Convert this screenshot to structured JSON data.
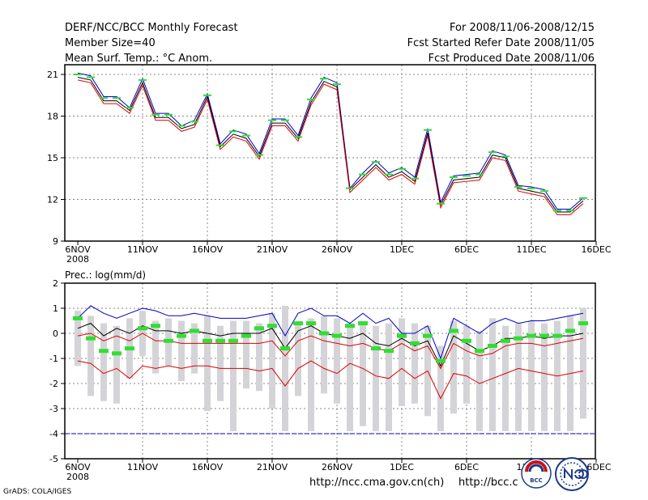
{
  "header": {
    "title": "DERF/NCC/BCC Monthly Forecast",
    "member_size": "Member Size=40",
    "variable": "Mean Surf. Temp.: °C Anom.",
    "period": "For 2008/11/06-2008/12/15",
    "started": "Fcst Started Refer Date 2008/11/05",
    "produced": "Fcst Produced Date 2008/11/06"
  },
  "footer": {
    "url1": "http://ncc.cma.gov.cn(ch)",
    "url2": "http://bcc.c",
    "grads": "GrADS: COLA/IGES",
    "logo_left": "BCC"
  },
  "colors": {
    "upper_line": "#0000cc",
    "lower_line": "#dd0000",
    "mean_line": "#000000",
    "forecast_mark": "#33dd33",
    "range_bar": "#d4d4d8",
    "grid": "#888888"
  },
  "chart_data": [
    {
      "type": "line",
      "title": "Mean Surf. Temp.: °C Anom.",
      "x_tick_labels": [
        "6NOV",
        "11NOV",
        "16NOV",
        "21NOV",
        "26NOV",
        "1DEC",
        "6DEC",
        "11DEC",
        "16DEC"
      ],
      "x_year_label": "2008",
      "y_ticks": [
        9,
        12,
        15,
        18,
        21
      ],
      "ylim": [
        9,
        21.7
      ],
      "grid": true,
      "x_days": [
        0,
        1,
        2,
        3,
        4,
        5,
        6,
        7,
        8,
        9,
        10,
        11,
        12,
        13,
        14,
        15,
        16,
        17,
        18,
        19,
        20,
        21,
        22,
        23,
        24,
        25,
        26,
        27,
        28,
        29,
        30,
        31,
        32,
        33,
        34,
        35,
        36,
        37,
        38,
        39
      ],
      "series": [
        {
          "name": "upper",
          "values": [
            21.1,
            20.9,
            19.4,
            19.4,
            18.6,
            20.7,
            18.2,
            18.2,
            17.3,
            17.7,
            19.6,
            16.0,
            17.0,
            16.7,
            15.3,
            17.8,
            17.8,
            16.6,
            19.3,
            20.8,
            20.4,
            12.8,
            13.9,
            14.8,
            13.9,
            14.3,
            13.6,
            17.1,
            11.8,
            13.7,
            13.8,
            13.9,
            15.5,
            15.2,
            13.0,
            12.9,
            12.7,
            11.3,
            11.3,
            12.1
          ]
        },
        {
          "name": "mean",
          "values": [
            20.8,
            20.6,
            19.1,
            19.1,
            18.4,
            20.4,
            17.9,
            17.9,
            17.1,
            17.4,
            19.4,
            15.8,
            16.7,
            16.4,
            15.1,
            17.5,
            17.5,
            16.4,
            19.0,
            20.5,
            20.1,
            12.7,
            13.6,
            14.5,
            13.6,
            14.0,
            13.3,
            16.8,
            11.6,
            13.4,
            13.5,
            13.6,
            15.2,
            15.0,
            12.8,
            12.6,
            12.4,
            11.1,
            11.1,
            11.9
          ]
        },
        {
          "name": "lower",
          "values": [
            20.6,
            20.4,
            18.9,
            18.9,
            18.2,
            20.2,
            17.7,
            17.7,
            16.9,
            17.2,
            19.2,
            15.6,
            16.5,
            16.2,
            14.9,
            17.3,
            17.3,
            16.2,
            18.8,
            20.3,
            19.9,
            12.5,
            13.4,
            14.3,
            13.4,
            13.8,
            13.1,
            16.6,
            11.4,
            13.2,
            13.3,
            13.4,
            15.0,
            14.8,
            12.6,
            12.4,
            12.2,
            10.9,
            10.9,
            11.7
          ]
        },
        {
          "name": "forecast",
          "values": [
            21.0,
            20.8,
            19.3,
            19.3,
            18.6,
            20.6,
            18.1,
            18.1,
            17.3,
            17.6,
            19.5,
            15.9,
            16.9,
            16.6,
            15.2,
            17.7,
            17.7,
            16.5,
            19.2,
            20.7,
            20.3,
            12.8,
            13.8,
            14.7,
            13.8,
            14.2,
            13.5,
            17.0,
            11.7,
            13.6,
            13.7,
            13.8,
            15.4,
            15.1,
            12.9,
            12.8,
            12.6,
            11.2,
            11.2,
            12.1
          ]
        }
      ]
    },
    {
      "type": "line",
      "title": "Prec.: log(mm/d)",
      "x_tick_labels": [
        "6NOV",
        "11NOV",
        "16NOV",
        "21NOV",
        "26NOV",
        "1DEC",
        "6DEC",
        "11DEC",
        "16DEC"
      ],
      "x_year_label": "2008",
      "y_ticks": [
        -5,
        -4,
        -3,
        -2,
        -1,
        0,
        1,
        2
      ],
      "ylim": [
        -5,
        2
      ],
      "grid": true,
      "x_days": [
        0,
        1,
        2,
        3,
        4,
        5,
        6,
        7,
        8,
        9,
        10,
        11,
        12,
        13,
        14,
        15,
        16,
        17,
        18,
        19,
        20,
        21,
        22,
        23,
        24,
        25,
        26,
        27,
        28,
        29,
        30,
        31,
        32,
        33,
        34,
        35,
        36,
        37,
        38,
        39
      ],
      "reference_level": -4,
      "range_bars": {
        "top": [
          0.9,
          0.7,
          0.4,
          0.3,
          0.6,
          0.9,
          0.5,
          0.6,
          0.5,
          0.4,
          0.7,
          0.3,
          0.5,
          0.5,
          0.4,
          0.8,
          1.1,
          0.4,
          0.6,
          0.7,
          0.6,
          0.4,
          0.5,
          0.3,
          0.4,
          0.6,
          0.4,
          0.3,
          -0.5,
          0.5,
          0.3,
          0.1,
          0.6,
          0.3,
          0.4,
          0.5,
          0.4,
          0.5,
          0.7,
          1.0
        ],
        "bottom": [
          -1.3,
          -2.5,
          -2.7,
          -2.8,
          -1.8,
          -0.9,
          -1.6,
          -1.3,
          -1.9,
          -1.6,
          -3.1,
          -2.7,
          -3.9,
          -2.2,
          -2.3,
          -3.0,
          -3.9,
          -2.5,
          -3.9,
          -2.4,
          -2.8,
          -3.9,
          -3.7,
          -3.9,
          -3.9,
          -2.9,
          -2.8,
          -3.3,
          -3.9,
          -3.2,
          -2.8,
          -3.9,
          -3.9,
          -3.9,
          -3.9,
          -3.9,
          -3.9,
          -3.9,
          -3.9,
          -3.4
        ]
      },
      "series": [
        {
          "name": "upper",
          "values": [
            0.6,
            1.1,
            0.8,
            0.6,
            0.8,
            1.0,
            0.9,
            0.7,
            0.7,
            0.8,
            0.7,
            0.6,
            0.6,
            0.6,
            0.7,
            0.8,
            -0.1,
            0.8,
            1.0,
            0.7,
            0.7,
            0.4,
            0.8,
            0.4,
            0.6,
            0.0,
            0.0,
            0.3,
            -1.0,
            0.6,
            0.3,
            0.0,
            0.4,
            0.6,
            0.4,
            0.5,
            0.5,
            0.6,
            0.7,
            0.8
          ]
        },
        {
          "name": "mean",
          "values": [
            0.2,
            0.4,
            -0.1,
            0.2,
            0.0,
            0.3,
            0.1,
            0.1,
            0.0,
            0.1,
            0.0,
            -0.1,
            0.0,
            0.0,
            0.0,
            0.2,
            -0.6,
            0.1,
            0.3,
            0.0,
            -0.1,
            -0.2,
            0.0,
            -0.4,
            -0.5,
            -0.2,
            -0.5,
            -0.3,
            -1.3,
            -0.1,
            -0.4,
            -0.7,
            -0.5,
            -0.2,
            -0.2,
            -0.1,
            -0.2,
            -0.1,
            -0.1,
            0.0
          ]
        },
        {
          "name": "lower_inner",
          "values": [
            -0.1,
            0.0,
            -0.3,
            -0.1,
            -0.3,
            0.0,
            -0.3,
            -0.3,
            -0.4,
            -0.4,
            -0.4,
            -0.4,
            -0.4,
            -0.4,
            -0.4,
            -0.3,
            -0.9,
            -0.3,
            -0.1,
            -0.3,
            -0.4,
            -0.5,
            -0.4,
            -0.6,
            -0.7,
            -0.4,
            -0.7,
            -0.5,
            -1.4,
            -0.4,
            -0.7,
            -0.9,
            -0.8,
            -0.5,
            -0.4,
            -0.4,
            -0.5,
            -0.4,
            -0.3,
            -0.2
          ]
        },
        {
          "name": "lower_outer",
          "values": [
            -1.1,
            -1.2,
            -1.6,
            -1.4,
            -1.8,
            -1.3,
            -1.4,
            -1.3,
            -1.4,
            -1.3,
            -1.3,
            -1.4,
            -1.4,
            -1.4,
            -1.5,
            -1.4,
            -2.1,
            -1.4,
            -1.1,
            -1.4,
            -1.6,
            -1.2,
            -1.4,
            -1.7,
            -1.8,
            -1.4,
            -1.8,
            -1.5,
            -2.6,
            -1.6,
            -1.7,
            -2.0,
            -1.8,
            -1.6,
            -1.4,
            -1.5,
            -1.6,
            -1.7,
            -1.6,
            -1.5
          ]
        },
        {
          "name": "forecast",
          "values": [
            0.6,
            -0.2,
            -0.7,
            -0.8,
            -0.6,
            0.2,
            0.3,
            -0.3,
            -0.1,
            0.1,
            -0.3,
            -0.3,
            -0.3,
            -0.1,
            0.2,
            0.3,
            -0.6,
            0.4,
            0.4,
            0.0,
            -0.1,
            0.3,
            0.4,
            -0.6,
            -0.7,
            -0.1,
            -0.4,
            -0.1,
            -1.1,
            0.1,
            -0.3,
            -0.7,
            -0.5,
            -0.3,
            -0.2,
            -0.1,
            -0.1,
            -0.1,
            0.1,
            0.4
          ]
        }
      ]
    }
  ]
}
